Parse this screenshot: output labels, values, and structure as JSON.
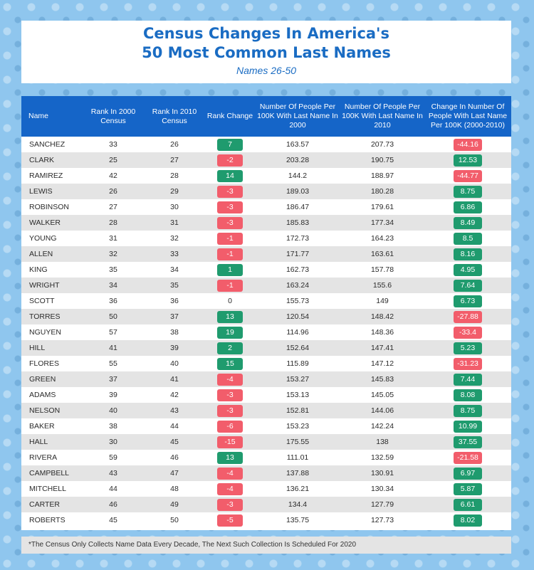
{
  "header": {
    "title_line1": "Census Changes In America's",
    "title_line2": "50 Most Common Last Names",
    "subtitle": "Names 26-50"
  },
  "columns": [
    "Name",
    "Rank In 2000 Census",
    "Rank In 2010 Census",
    "Rank Change",
    "Number Of People Per 100K With Last Name In 2000",
    "Number Of People Per 100K With Last Name In 2010",
    "Change In Number Of People With Last Name Per 100K (2000-2010)"
  ],
  "colors": {
    "positive": "#1f9b6e",
    "negative": "#f25d6b",
    "header": "#1565c8",
    "title": "#1a6cc3"
  },
  "chart_data": {
    "type": "table",
    "title": "Census Changes In America's 50 Most Common Last Names",
    "subtitle": "Names 26-50",
    "rows": [
      {
        "name": "SANCHEZ",
        "rank2000": "33",
        "rank2010": "26",
        "rank_change": "7",
        "per100k_2000": "163.57",
        "per100k_2010": "207.73",
        "change_per100k": "-44.16"
      },
      {
        "name": "CLARK",
        "rank2000": "25",
        "rank2010": "27",
        "rank_change": "-2",
        "per100k_2000": "203.28",
        "per100k_2010": "190.75",
        "change_per100k": "12.53"
      },
      {
        "name": "RAMIREZ",
        "rank2000": "42",
        "rank2010": "28",
        "rank_change": "14",
        "per100k_2000": "144.2",
        "per100k_2010": "188.97",
        "change_per100k": "-44.77"
      },
      {
        "name": "LEWIS",
        "rank2000": "26",
        "rank2010": "29",
        "rank_change": "-3",
        "per100k_2000": "189.03",
        "per100k_2010": "180.28",
        "change_per100k": "8.75"
      },
      {
        "name": "ROBINSON",
        "rank2000": "27",
        "rank2010": "30",
        "rank_change": "-3",
        "per100k_2000": "186.47",
        "per100k_2010": "179.61",
        "change_per100k": "6.86"
      },
      {
        "name": "WALKER",
        "rank2000": "28",
        "rank2010": "31",
        "rank_change": "-3",
        "per100k_2000": "185.83",
        "per100k_2010": "177.34",
        "change_per100k": "8.49"
      },
      {
        "name": "YOUNG",
        "rank2000": "31",
        "rank2010": "32",
        "rank_change": "-1",
        "per100k_2000": "172.73",
        "per100k_2010": "164.23",
        "change_per100k": "8.5"
      },
      {
        "name": "ALLEN",
        "rank2000": "32",
        "rank2010": "33",
        "rank_change": "-1",
        "per100k_2000": "171.77",
        "per100k_2010": "163.61",
        "change_per100k": "8.16"
      },
      {
        "name": "KING",
        "rank2000": "35",
        "rank2010": "34",
        "rank_change": "1",
        "per100k_2000": "162.73",
        "per100k_2010": "157.78",
        "change_per100k": "4.95"
      },
      {
        "name": "WRIGHT",
        "rank2000": "34",
        "rank2010": "35",
        "rank_change": "-1",
        "per100k_2000": "163.24",
        "per100k_2010": "155.6",
        "change_per100k": "7.64"
      },
      {
        "name": "SCOTT",
        "rank2000": "36",
        "rank2010": "36",
        "rank_change": "0",
        "per100k_2000": "155.73",
        "per100k_2010": "149",
        "change_per100k": "6.73"
      },
      {
        "name": "TORRES",
        "rank2000": "50",
        "rank2010": "37",
        "rank_change": "13",
        "per100k_2000": "120.54",
        "per100k_2010": "148.42",
        "change_per100k": "-27.88"
      },
      {
        "name": "NGUYEN",
        "rank2000": "57",
        "rank2010": "38",
        "rank_change": "19",
        "per100k_2000": "114.96",
        "per100k_2010": "148.36",
        "change_per100k": "-33.4"
      },
      {
        "name": "HILL",
        "rank2000": "41",
        "rank2010": "39",
        "rank_change": "2",
        "per100k_2000": "152.64",
        "per100k_2010": "147.41",
        "change_per100k": "5.23"
      },
      {
        "name": "FLORES",
        "rank2000": "55",
        "rank2010": "40",
        "rank_change": "15",
        "per100k_2000": "115.89",
        "per100k_2010": "147.12",
        "change_per100k": "-31.23"
      },
      {
        "name": "GREEN",
        "rank2000": "37",
        "rank2010": "41",
        "rank_change": "-4",
        "per100k_2000": "153.27",
        "per100k_2010": "145.83",
        "change_per100k": "7.44"
      },
      {
        "name": "ADAMS",
        "rank2000": "39",
        "rank2010": "42",
        "rank_change": "-3",
        "per100k_2000": "153.13",
        "per100k_2010": "145.05",
        "change_per100k": "8.08"
      },
      {
        "name": "NELSON",
        "rank2000": "40",
        "rank2010": "43",
        "rank_change": "-3",
        "per100k_2000": "152.81",
        "per100k_2010": "144.06",
        "change_per100k": "8.75"
      },
      {
        "name": "BAKER",
        "rank2000": "38",
        "rank2010": "44",
        "rank_change": "-6",
        "per100k_2000": "153.23",
        "per100k_2010": "142.24",
        "change_per100k": "10.99"
      },
      {
        "name": "HALL",
        "rank2000": "30",
        "rank2010": "45",
        "rank_change": "-15",
        "per100k_2000": "175.55",
        "per100k_2010": "138",
        "change_per100k": "37.55"
      },
      {
        "name": "RIVERA",
        "rank2000": "59",
        "rank2010": "46",
        "rank_change": "13",
        "per100k_2000": "111.01",
        "per100k_2010": "132.59",
        "change_per100k": "-21.58"
      },
      {
        "name": "CAMPBELL",
        "rank2000": "43",
        "rank2010": "47",
        "rank_change": "-4",
        "per100k_2000": "137.88",
        "per100k_2010": "130.91",
        "change_per100k": "6.97"
      },
      {
        "name": "MITCHELL",
        "rank2000": "44",
        "rank2010": "48",
        "rank_change": "-4",
        "per100k_2000": "136.21",
        "per100k_2010": "130.34",
        "change_per100k": "5.87"
      },
      {
        "name": "CARTER",
        "rank2000": "46",
        "rank2010": "49",
        "rank_change": "-3",
        "per100k_2000": "134.4",
        "per100k_2010": "127.79",
        "change_per100k": "6.61"
      },
      {
        "name": "ROBERTS",
        "rank2000": "45",
        "rank2010": "50",
        "rank_change": "-5",
        "per100k_2000": "135.75",
        "per100k_2010": "127.73",
        "change_per100k": "8.02"
      }
    ]
  },
  "footnote": "*The Census Only Collects Name Data Every Decade, The Next Such Collection Is Scheduled For 2020"
}
